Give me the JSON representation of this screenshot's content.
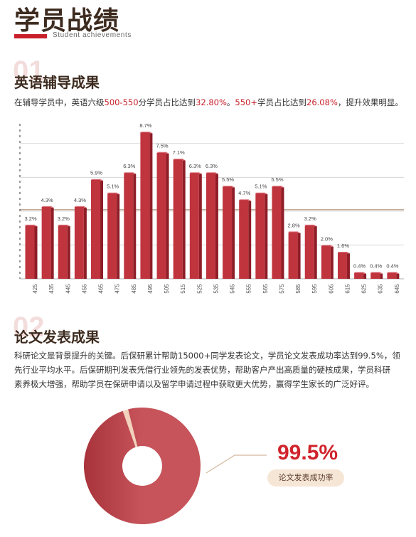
{
  "header": {
    "title": "学员战绩",
    "subtitle": "Student achievements"
  },
  "section1": {
    "number": "01",
    "title": "英语辅导成果",
    "desc": {
      "t1": "在辅导学员中，英语六级",
      "h1": "500-550",
      "t2": "分学员占比达到",
      "h2": "32.80%",
      "t3": "。",
      "h3": "550+",
      "t4": "学员占比达到",
      "h4": "26.08%",
      "t5": "，提升效果明显。"
    }
  },
  "chart_data": {
    "type": "bar",
    "categories": [
      "425",
      "435",
      "445",
      "455",
      "465",
      "475",
      "485",
      "495",
      "505",
      "515",
      "525",
      "535",
      "545",
      "555",
      "565",
      "575",
      "585",
      "595",
      "605",
      "615",
      "625",
      "635",
      "645"
    ],
    "values": [
      3.2,
      4.3,
      3.2,
      4.3,
      5.9,
      5.1,
      6.3,
      8.7,
      7.5,
      7.1,
      6.3,
      6.3,
      5.5,
      4.7,
      5.1,
      5.5,
      2.8,
      3.2,
      2.0,
      1.6,
      0.4,
      0.4,
      0.4
    ],
    "data_labels": [
      "3.2%",
      "4.3%",
      "3.2%",
      "4.3%",
      "5.9%",
      "5.1%",
      "6.3%",
      "8.7%",
      "7.5%",
      "7.1%",
      "6.3%",
      "6.3%",
      "5.5%",
      "4.7%",
      "5.1%",
      "5.5%",
      "2.8%",
      "3.2%",
      "2.0%",
      "1.6%",
      "0.4%",
      "0.4%",
      "0.4%"
    ],
    "ylim": [
      0,
      9
    ],
    "colors": {
      "bar_front": "#c0343e",
      "bar_side": "#8e1d27",
      "bar_top": "#e27a83",
      "grid": "#cfcfcf",
      "highlight_line": "#b39179"
    }
  },
  "section2": {
    "number": "02",
    "title": "论文发表成果",
    "lines": [
      "科研论文是背景提升的关键。后保研累计帮助15000+同学发表论文，学员论文发表成功率达到99.5%，领",
      "先行业平均水平。后保研期刊发表凭借行业领先的发表优势，帮助客户产出高质量的硬核成果，学员科研",
      "素养极大增强，帮助学员在保研申请以及留学申请过程中获取更大优势，赢得学生家长的广泛好评。"
    ]
  },
  "donut": {
    "value": 99.5,
    "value_label": "99.5%",
    "label": "论文发表成功率",
    "colors": {
      "main": "#c6545a",
      "dark": "#a8333b",
      "rest": "#f2d2bc"
    }
  }
}
